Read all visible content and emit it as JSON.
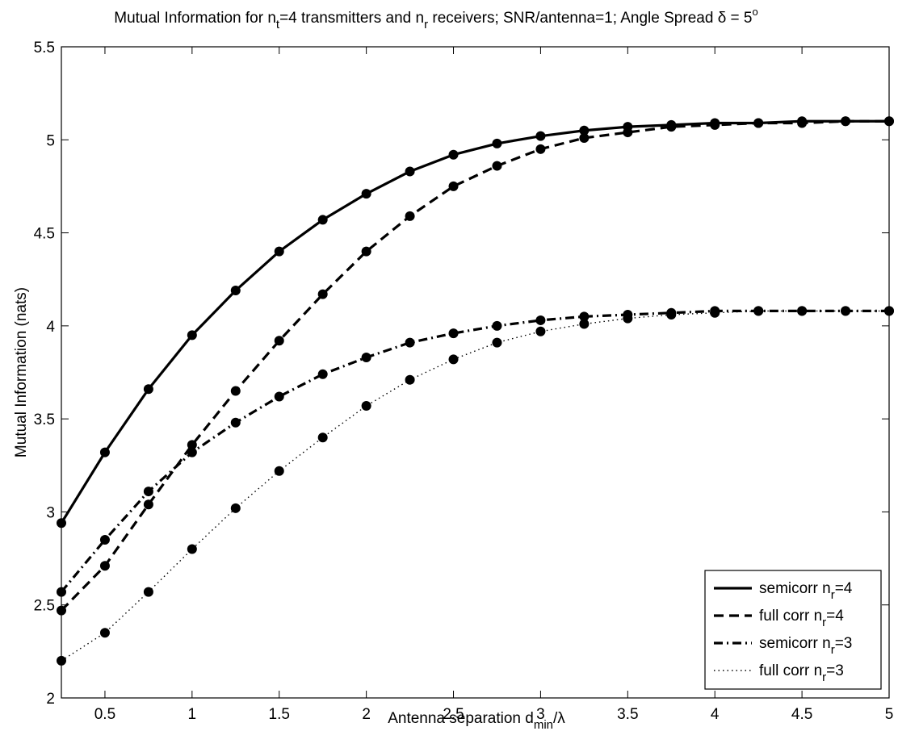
{
  "chart_data": {
    "type": "line",
    "title": {
      "parts": [
        "Mutual Information for n",
        "t",
        "=4 transmitters and n",
        "r",
        " receivers; SNR/antenna=1; Angle Spread ",
        "δ",
        " = 5",
        "o"
      ]
    },
    "xlabel": {
      "parts": [
        "Antenna separation d",
        "min",
        "/",
        "λ"
      ]
    },
    "ylabel": "Mutual Information (nats)",
    "xlim": [
      0.25,
      5
    ],
    "ylim": [
      2,
      5.5
    ],
    "xticks": [
      0.5,
      1,
      1.5,
      2,
      2.5,
      3,
      3.5,
      4,
      4.5,
      5
    ],
    "xtick_labels": [
      "0.5",
      "1",
      "1.5",
      "2",
      "2.5",
      "3",
      "3.5",
      "4",
      "4.5",
      "5"
    ],
    "yticks": [
      2,
      2.5,
      3,
      3.5,
      4,
      4.5,
      5,
      5.5
    ],
    "ytick_labels": [
      "2",
      "2.5",
      "3",
      "3.5",
      "4",
      "4.5",
      "5",
      "5.5"
    ],
    "grid": false,
    "legend_position": "bottom-right",
    "x": [
      0.25,
      0.5,
      0.75,
      1.0,
      1.25,
      1.5,
      1.75,
      2.0,
      2.25,
      2.5,
      2.75,
      3.0,
      3.25,
      3.5,
      3.75,
      4.0,
      4.25,
      4.5,
      4.75,
      5.0
    ],
    "series": [
      {
        "legend_parts": [
          "semicorr n",
          "r",
          "=4"
        ],
        "line_style": "solid",
        "color": "#000000",
        "values": [
          2.94,
          3.32,
          3.66,
          3.95,
          4.19,
          4.4,
          4.57,
          4.71,
          4.83,
          4.92,
          4.98,
          5.02,
          5.05,
          5.07,
          5.08,
          5.09,
          5.09,
          5.1,
          5.1,
          5.1
        ]
      },
      {
        "legend_parts": [
          "full corr n",
          "r",
          "=4"
        ],
        "line_style": "dashed",
        "color": "#000000",
        "values": [
          2.47,
          2.71,
          3.04,
          3.36,
          3.65,
          3.92,
          4.17,
          4.4,
          4.59,
          4.75,
          4.86,
          4.95,
          5.01,
          5.04,
          5.07,
          5.08,
          5.09,
          5.09,
          5.1,
          5.1
        ]
      },
      {
        "legend_parts": [
          "semicorr n",
          "r",
          "=3"
        ],
        "line_style": "dashdot",
        "color": "#000000",
        "values": [
          2.57,
          2.85,
          3.11,
          3.32,
          3.48,
          3.62,
          3.74,
          3.83,
          3.91,
          3.96,
          4.0,
          4.03,
          4.05,
          4.06,
          4.07,
          4.08,
          4.08,
          4.08,
          4.08,
          4.08
        ]
      },
      {
        "legend_parts": [
          "full corr n",
          "r",
          "=3"
        ],
        "line_style": "dotted",
        "color": "#000000",
        "values": [
          2.2,
          2.35,
          2.57,
          2.8,
          3.02,
          3.22,
          3.4,
          3.57,
          3.71,
          3.82,
          3.91,
          3.97,
          4.01,
          4.04,
          4.06,
          4.07,
          4.08,
          4.08,
          4.08,
          4.08
        ]
      }
    ]
  }
}
